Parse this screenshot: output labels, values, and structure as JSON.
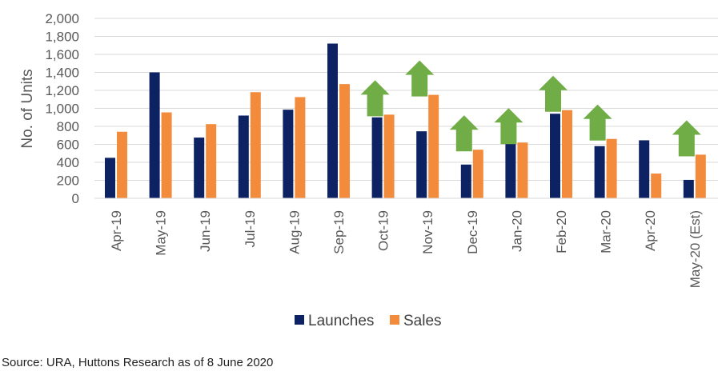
{
  "chart_data": {
    "type": "bar",
    "categories": [
      "Apr-19",
      "May-19",
      "Jun-19",
      "Jul-19",
      "Aug-19",
      "Sep-19",
      "Oct-19",
      "Nov-19",
      "Dec-19",
      "Jan-20",
      "Feb-20",
      "Mar-20",
      "Apr-20",
      "May-20 (Est)"
    ],
    "series": [
      {
        "name": "Launches",
        "color": "#0d2262",
        "values": [
          450,
          1400,
          675,
          920,
          985,
          1720,
          900,
          745,
          375,
          605,
          940,
          580,
          645,
          205
        ]
      },
      {
        "name": "Sales",
        "color": "#f28c3c",
        "values": [
          740,
          955,
          825,
          1180,
          1125,
          1270,
          930,
          1150,
          540,
          620,
          980,
          660,
          275,
          485
        ]
      }
    ],
    "annotations": [
      {
        "type": "up-arrow",
        "color": "#70ad47",
        "category": "Oct-19"
      },
      {
        "type": "up-arrow",
        "color": "#70ad47",
        "category": "Nov-19"
      },
      {
        "type": "up-arrow",
        "color": "#70ad47",
        "category": "Dec-19"
      },
      {
        "type": "up-arrow",
        "color": "#70ad47",
        "category": "Jan-20"
      },
      {
        "type": "up-arrow",
        "color": "#70ad47",
        "category": "Feb-20"
      },
      {
        "type": "up-arrow",
        "color": "#70ad47",
        "category": "Mar-20"
      },
      {
        "type": "up-arrow",
        "color": "#70ad47",
        "category": "May-20 (Est)"
      }
    ],
    "ylabel": "No. of Units",
    "xlabel": "",
    "ylim": [
      0,
      2000
    ],
    "yticks": [
      "0",
      "200",
      "400",
      "600",
      "800",
      "1,000",
      "1,200",
      "1,400",
      "1,600",
      "1,800",
      "2,000"
    ],
    "grid": true,
    "legend": "bottom-center"
  },
  "source": "Source: URA, Huttons Research as of 8 June 2020"
}
